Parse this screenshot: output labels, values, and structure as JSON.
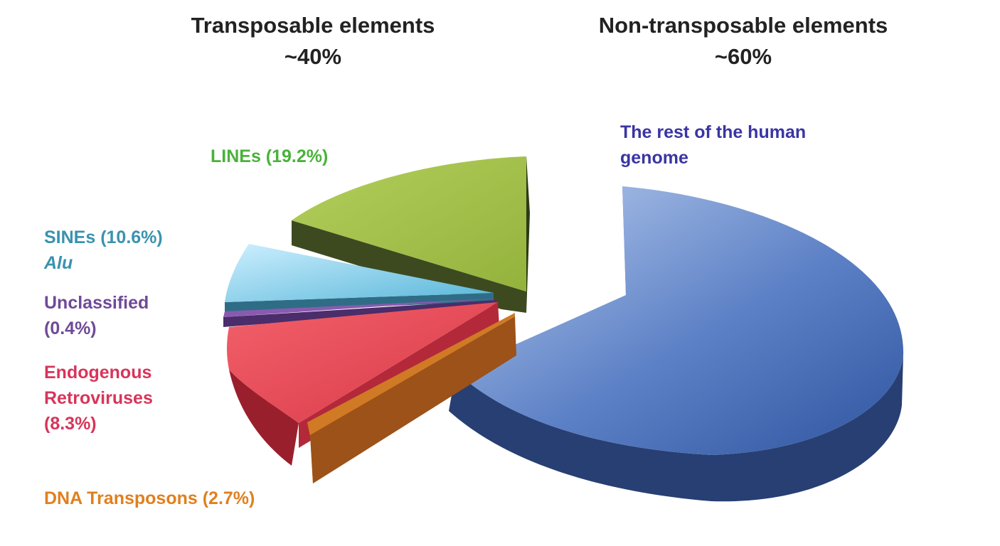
{
  "header": {
    "left": {
      "title": "Transposable elements",
      "percent": "~40%"
    },
    "right": {
      "title": "Non-transposable elements",
      "percent": "~60%"
    }
  },
  "labels": {
    "rest": {
      "line1": "The rest of the human",
      "line2": "genome"
    },
    "lines": {
      "text": "LINEs (19.2%)"
    },
    "sines": {
      "line1": "SINEs (10.6%)",
      "line2": "Alu"
    },
    "unclassified": {
      "line1": "Unclassified",
      "line2": "(0.4%)"
    },
    "erv": {
      "line1": "Endogenous",
      "line2": "Retroviruses",
      "line3": "(8.3%)"
    },
    "dna": {
      "text": "DNA Transposons (2.7%)"
    }
  },
  "colors": {
    "rest": "#4f74c0",
    "lines": "#9cba45",
    "sines": "#6fc4e2",
    "unclassified": "#8a5ab0",
    "erv": "#e44c58",
    "dna": "#ec8a2c",
    "label_rest": "#3a35a3",
    "label_lines": "#4ab23a",
    "label_sines": "#3a92b0",
    "label_unclassified": "#6f4a98",
    "label_erv": "#d8345a",
    "label_dna": "#e0801e"
  },
  "chart_data": {
    "type": "pie",
    "style": "3d exploded pie",
    "categories": [
      "The rest of the human genome",
      "LINEs",
      "SINEs",
      "Unclassified",
      "Endogenous Retroviruses",
      "DNA Transposons"
    ],
    "values": [
      58.8,
      19.2,
      10.6,
      0.4,
      8.3,
      2.7
    ],
    "groups": [
      {
        "name": "Transposable elements",
        "approx_percent": 40
      },
      {
        "name": "Non-transposable elements",
        "approx_percent": 60
      }
    ]
  }
}
